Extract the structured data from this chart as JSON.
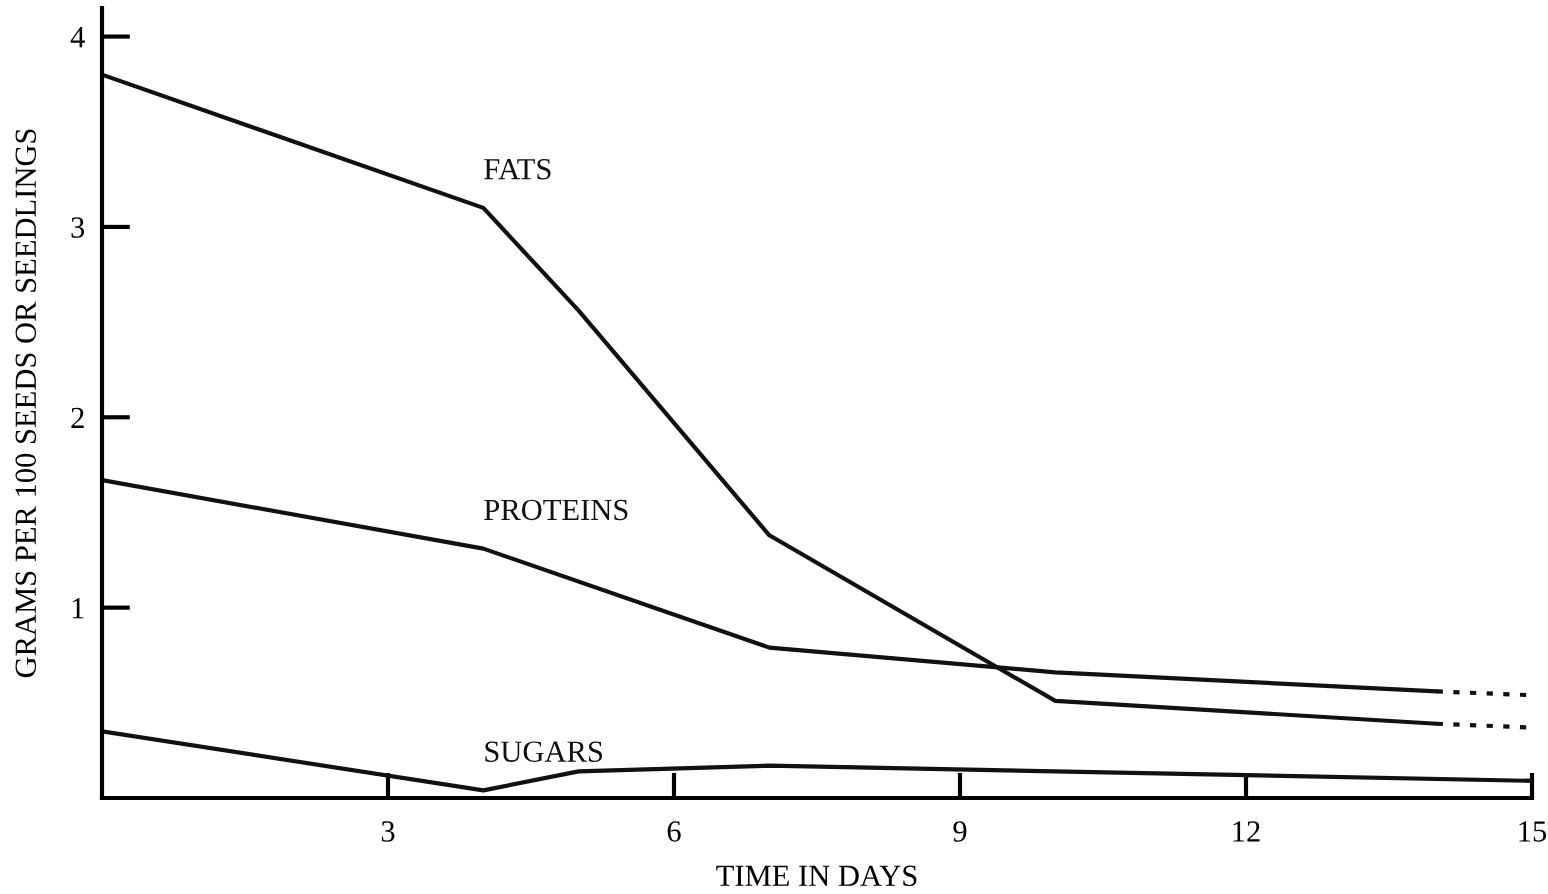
{
  "chart_data": {
    "type": "line",
    "xlabel": "TIME IN DAYS",
    "ylabel": "GRAMS PER 100 SEEDS OR SEEDLINGS",
    "xlim": [
      0,
      15
    ],
    "ylim": [
      0,
      4.15
    ],
    "xticks": [
      3,
      6,
      9,
      12,
      15
    ],
    "yticks": [
      1,
      2,
      3,
      4
    ],
    "grid": false,
    "legend": false,
    "marker": "none",
    "series": [
      {
        "name": "FATS",
        "color": "#111111",
        "x": [
          0,
          4,
          5,
          7,
          10,
          14
        ],
        "values": [
          3.8,
          3.1,
          2.56,
          1.38,
          0.51,
          0.39
        ],
        "line_style": "solid"
      },
      {
        "color": "#111111",
        "x": [
          14,
          15
        ],
        "values": [
          0.39,
          0.37
        ],
        "line_style": "dotted"
      },
      {
        "name": "PROTEINS",
        "color": "#111111",
        "x": [
          0,
          4,
          7,
          10,
          14
        ],
        "values": [
          1.67,
          1.31,
          0.79,
          0.66,
          0.56
        ],
        "line_style": "solid"
      },
      {
        "color": "#111111",
        "x": [
          14,
          15
        ],
        "values": [
          0.56,
          0.54
        ],
        "line_style": "dotted"
      },
      {
        "name": "SUGARS",
        "color": "#111111",
        "x": [
          0,
          4,
          5,
          7,
          15
        ],
        "values": [
          0.35,
          0.04,
          0.14,
          0.17,
          0.09
        ],
        "line_style": "solid"
      }
    ]
  }
}
